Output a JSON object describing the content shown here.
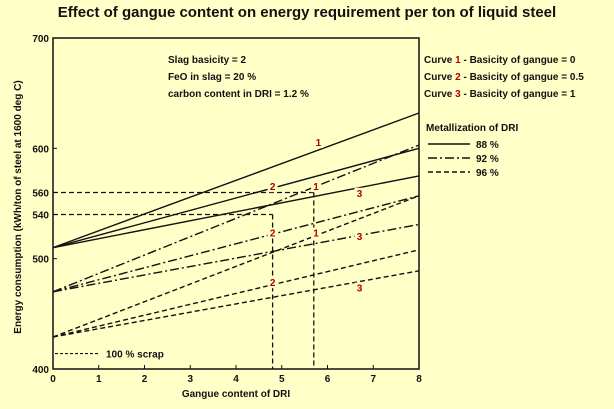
{
  "chart_data": {
    "type": "line",
    "title": "Effect of gangue content on energy requirement per ton of liquid steel",
    "xlabel": "Gangue content of DRI",
    "ylabel": "Energy consumption (kWh/ton of steel at 1600 deg C)",
    "xlim": [
      0,
      8
    ],
    "ylim": [
      400,
      700
    ],
    "xticks": [
      "0",
      "1",
      "2",
      "3",
      "4",
      "5",
      "6",
      "7",
      "8"
    ],
    "yticks": [
      {
        "value": 400,
        "label": "400"
      },
      {
        "value": 500,
        "label": "500"
      },
      {
        "value": 540,
        "label": "540"
      },
      {
        "value": 560,
        "label": "560"
      },
      {
        "value": 600,
        "label": "600"
      },
      {
        "value": 700,
        "label": "700"
      }
    ],
    "grid": false,
    "conditions": [
      "Slag basicity = 2",
      "FeO in slag = 20 %",
      "carbon content in DRI = 1.2 %"
    ],
    "curve_legend": [
      {
        "prefix": "Curve ",
        "num": "1",
        "text": " - Basicity of gangue = 0"
      },
      {
        "prefix": "Curve ",
        "num": "2",
        "text": " - Basicity of gangue = 0.5"
      },
      {
        "prefix": "Curve ",
        "num": "3",
        "text": " - Basicity of gangue = 1"
      }
    ],
    "metallization_title": "Metallization of DRI",
    "metallization": [
      {
        "label": "88 %",
        "dash": "solid"
      },
      {
        "label": "92 %",
        "dash": "dashdot"
      },
      {
        "label": "96 %",
        "dash": "dashed"
      }
    ],
    "series": [
      {
        "metallization": "88 %",
        "curve": "1",
        "x": [
          0,
          8
        ],
        "y": [
          510,
          632
        ]
      },
      {
        "metallization": "88 %",
        "curve": "2",
        "x": [
          0,
          8
        ],
        "y": [
          510,
          600
        ]
      },
      {
        "metallization": "88 %",
        "curve": "3",
        "x": [
          0,
          8
        ],
        "y": [
          510,
          575
        ]
      },
      {
        "metallization": "92 %",
        "curve": "1",
        "x": [
          0,
          8
        ],
        "y": [
          470,
          603
        ]
      },
      {
        "metallization": "92 %",
        "curve": "2",
        "x": [
          0,
          8
        ],
        "y": [
          470,
          557
        ]
      },
      {
        "metallization": "92 %",
        "curve": "3",
        "x": [
          0,
          8
        ],
        "y": [
          470,
          531
        ]
      },
      {
        "metallization": "96 %",
        "curve": "1",
        "x": [
          0,
          8
        ],
        "y": [
          429,
          557
        ]
      },
      {
        "metallization": "96 %",
        "curve": "2",
        "x": [
          0,
          8
        ],
        "y": [
          429,
          508
        ]
      },
      {
        "metallization": "96 %",
        "curve": "3",
        "x": [
          0,
          8
        ],
        "y": [
          429,
          489
        ]
      }
    ],
    "curve_labels": [
      {
        "text": "1",
        "x": 5.8,
        "y": 603
      },
      {
        "text": "2",
        "x": 4.8,
        "y": 563
      },
      {
        "text": "3",
        "x": 6.7,
        "y": 557
      },
      {
        "text": "1",
        "x": 5.75,
        "y": 563
      },
      {
        "text": "2",
        "x": 4.8,
        "y": 521
      },
      {
        "text": "3",
        "x": 6.7,
        "y": 518
      },
      {
        "text": "1",
        "x": 5.75,
        "y": 521
      },
      {
        "text": "2",
        "x": 4.8,
        "y": 476
      },
      {
        "text": "3",
        "x": 6.7,
        "y": 471
      }
    ],
    "reference_lines": [
      {
        "y": 560,
        "x_end": 5.7
      },
      {
        "y": 540,
        "x_end": 4.8
      }
    ],
    "scrap_reference": {
      "label": "100 % scrap",
      "y": 414
    }
  }
}
